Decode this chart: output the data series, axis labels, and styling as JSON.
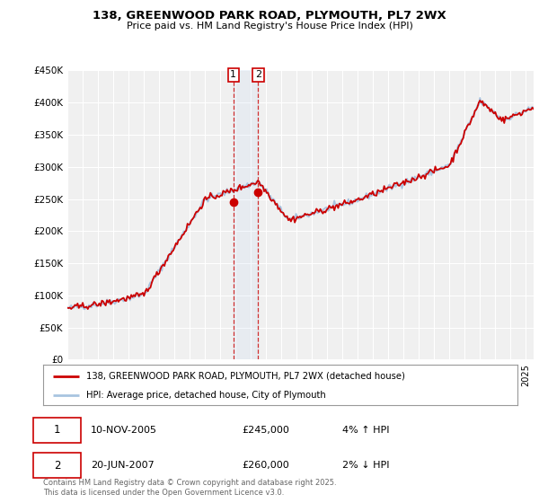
{
  "title": "138, GREENWOOD PARK ROAD, PLYMOUTH, PL7 2WX",
  "subtitle": "Price paid vs. HM Land Registry's House Price Index (HPI)",
  "ylim": [
    0,
    450000
  ],
  "yticks": [
    0,
    50000,
    100000,
    150000,
    200000,
    250000,
    300000,
    350000,
    400000,
    450000
  ],
  "ytick_labels": [
    "£0",
    "£50K",
    "£100K",
    "£150K",
    "£200K",
    "£250K",
    "£300K",
    "£350K",
    "£400K",
    "£450K"
  ],
  "hpi_color": "#a8c4e0",
  "price_color": "#cc0000",
  "background_color": "#ffffff",
  "plot_bg_color": "#f0f0f0",
  "grid_color": "#ffffff",
  "transaction1_date": "10-NOV-2005",
  "transaction1_price": 245000,
  "transaction1_hpi_diff": "4% ↑ HPI",
  "transaction2_date": "20-JUN-2007",
  "transaction2_price": 260000,
  "transaction2_hpi_diff": "2% ↓ HPI",
  "transaction1_x": 2005.86,
  "transaction2_x": 2007.47,
  "legend_line1": "138, GREENWOOD PARK ROAD, PLYMOUTH, PL7 2WX (detached house)",
  "legend_line2": "HPI: Average price, detached house, City of Plymouth",
  "footer": "Contains HM Land Registry data © Crown copyright and database right 2025.\nThis data is licensed under the Open Government Licence v3.0.",
  "xmin": 1995,
  "xmax": 2025.5
}
